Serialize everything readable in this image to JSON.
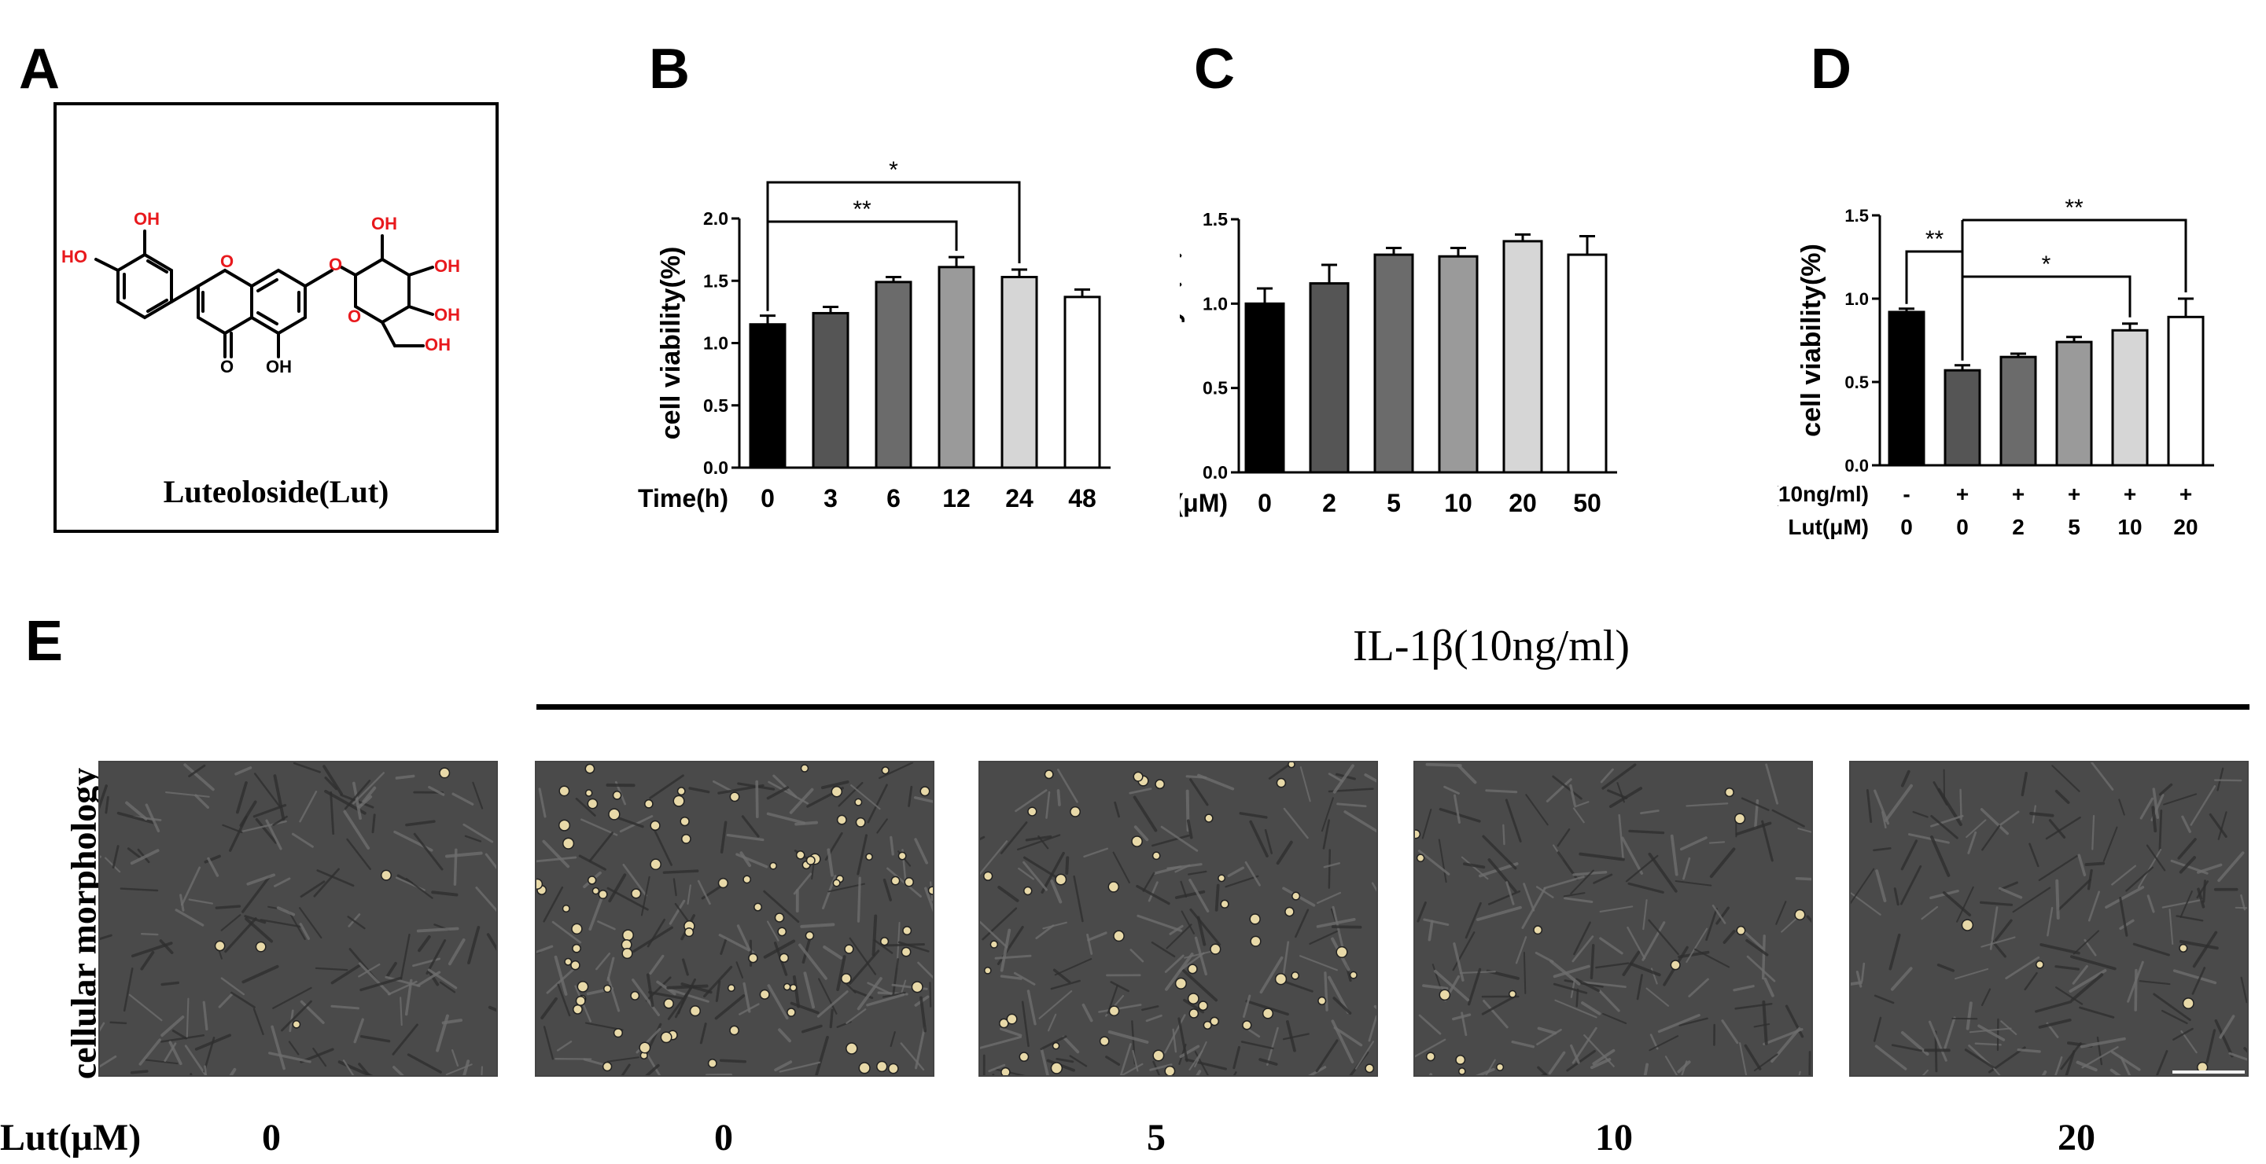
{
  "panel_letters": {
    "a": "A",
    "b": "B",
    "c": "C",
    "d": "D",
    "e": "E"
  },
  "panel_a": {
    "molecule_name": "Luteoloside(Lut)",
    "atom_labels": {
      "oh": "OH",
      "ho": "HO",
      "o": "O"
    },
    "colors": {
      "heteroatom": "#e8191d",
      "bond": "#000000"
    }
  },
  "chart_data": [
    {
      "panel": "B",
      "type": "bar",
      "ylabel": "cell viability(%)",
      "xlabel": "Time(h)",
      "categories": [
        "0",
        "3",
        "6",
        "12",
        "24",
        "48"
      ],
      "values": [
        1.15,
        1.24,
        1.49,
        1.61,
        1.53,
        1.37
      ],
      "errors": [
        0.07,
        0.05,
        0.04,
        0.08,
        0.06,
        0.06
      ],
      "ylim": [
        0.0,
        2.0
      ],
      "yticks": [
        "0.0",
        "0.5",
        "1.0",
        "1.5",
        "2.0"
      ],
      "fills": [
        "#000000",
        "#555555",
        "#6b6b6b",
        "#9a9a9a",
        "#d6d6d6",
        "#ffffff"
      ],
      "significance": [
        {
          "from": "0",
          "to": "24",
          "label": "*"
        },
        {
          "from": "0",
          "to": "12",
          "label": "**"
        }
      ]
    },
    {
      "panel": "C",
      "type": "bar",
      "ylabel": "cell viability（%）",
      "xlabel": "Lut(μM)",
      "categories": [
        "0",
        "2",
        "5",
        "10",
        "20",
        "50"
      ],
      "values": [
        1.0,
        1.12,
        1.29,
        1.28,
        1.37,
        1.29
      ],
      "errors": [
        0.09,
        0.11,
        0.04,
        0.05,
        0.04,
        0.11
      ],
      "ylim": [
        0.0,
        1.5
      ],
      "yticks": [
        "0.0",
        "0.5",
        "1.0",
        "1.5"
      ],
      "fills": [
        "#000000",
        "#555555",
        "#6b6b6b",
        "#9a9a9a",
        "#d6d6d6",
        "#ffffff"
      ],
      "significance": []
    },
    {
      "panel": "D",
      "type": "bar",
      "ylabel": "cell viability(%)",
      "xlabel_rows": [
        {
          "label": "IL-1β(10ng/ml)",
          "values": [
            "-",
            "+",
            "+",
            "+",
            "+",
            "+"
          ]
        },
        {
          "label": "Lut(μM)",
          "values": [
            "0",
            "0",
            "2",
            "5",
            "10",
            "20"
          ]
        }
      ],
      "values": [
        0.92,
        0.57,
        0.65,
        0.74,
        0.81,
        0.89
      ],
      "errors": [
        0.02,
        0.03,
        0.02,
        0.03,
        0.04,
        0.11
      ],
      "ylim": [
        0.0,
        1.5
      ],
      "yticks": [
        "0.0",
        "0.5",
        "1.0",
        "1.5"
      ],
      "fills": [
        "#000000",
        "#555555",
        "#6b6b6b",
        "#9a9a9a",
        "#d6d6d6",
        "#ffffff"
      ],
      "significance": [
        {
          "from": 0,
          "to": 1,
          "label": "**"
        },
        {
          "from": 1,
          "to": 4,
          "label": "*"
        },
        {
          "from": 1,
          "to": 5,
          "label": "**"
        }
      ]
    }
  ],
  "panel_e": {
    "title": "IL-1β(10ng/ml)",
    "side_label": "cellular morphology",
    "dose_label": "Lut(μM)",
    "doses": [
      "0",
      "0",
      "5",
      "10",
      "20"
    ],
    "colors": {
      "micrograph_bg": "#4a4a4a",
      "rounded_cell": "#e8d9a8"
    },
    "rounded_cell_density": [
      0.05,
      1.0,
      0.55,
      0.15,
      0.05
    ]
  }
}
